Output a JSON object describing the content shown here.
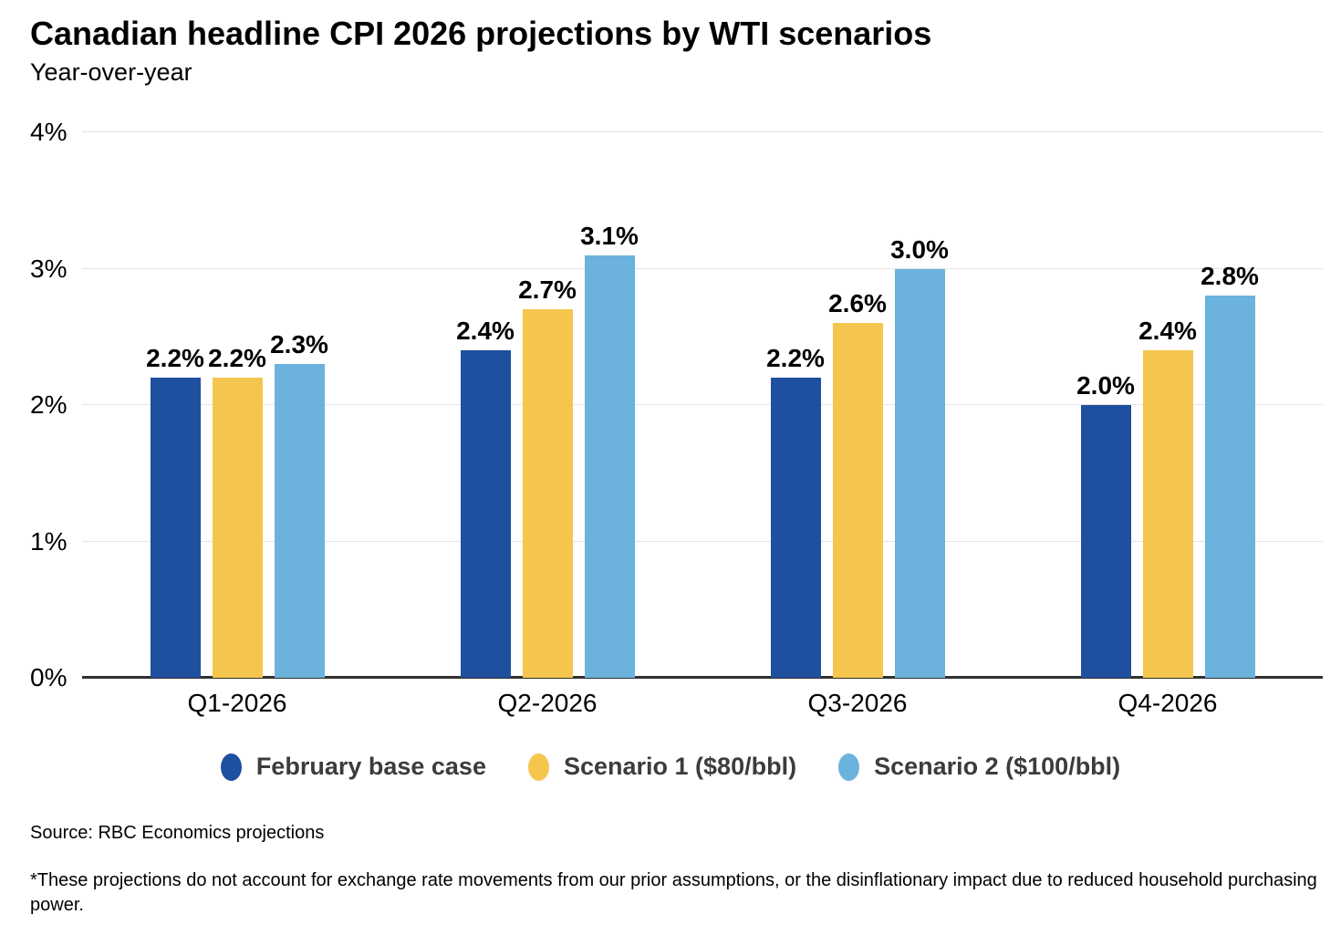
{
  "header": {
    "title": "Canadian headline CPI 2026 projections by WTI scenarios",
    "subtitle": "Year-over-year"
  },
  "footer": {
    "source": "Source: RBC Economics projections",
    "footnote": "*These projections do not account for exchange rate movements from our prior assumptions, or the disinflationary impact due to reduced household purchasing power."
  },
  "colors": {
    "base_case_blue": "#1F4F9F",
    "scenario1_yellow": "#F5C64E",
    "scenario2_light_blue": "#6BB3DC",
    "axis_line": "#303030",
    "gridline": "#E4E4E4",
    "legend_text": "#3C3C3C"
  },
  "chart_data": {
    "type": "bar",
    "title": "Canadian headline CPI 2026 projections by WTI scenarios",
    "subtitle": "Year-over-year",
    "categories": [
      "Q1-2026",
      "Q2-2026",
      "Q3-2026",
      "Q4-2026"
    ],
    "series": [
      {
        "name": "February base case",
        "color": "#1F4F9F",
        "values": [
          2.2,
          2.4,
          2.2,
          2.0
        ],
        "labels": [
          "2.2%",
          "2.4%",
          "2.2%",
          "2.0%"
        ]
      },
      {
        "name": "Scenario 1 ($80/bbl)",
        "color": "#F5C64E",
        "values": [
          2.2,
          2.7,
          2.6,
          2.4
        ],
        "labels": [
          "2.2%",
          "2.7%",
          "2.6%",
          "2.4%"
        ]
      },
      {
        "name": "Scenario 2 ($100/bbl)",
        "color": "#6BB3DC",
        "values": [
          2.3,
          3.1,
          3.0,
          2.8
        ],
        "labels": [
          "2.3%",
          "3.1%",
          "3.0%",
          "2.8%"
        ]
      }
    ],
    "xlabel": "",
    "ylabel": "",
    "ylim": [
      0,
      4
    ],
    "yticks": [
      "0%",
      "1%",
      "2%",
      "3%",
      "4%"
    ],
    "grid": true,
    "legend_position": "bottom"
  }
}
